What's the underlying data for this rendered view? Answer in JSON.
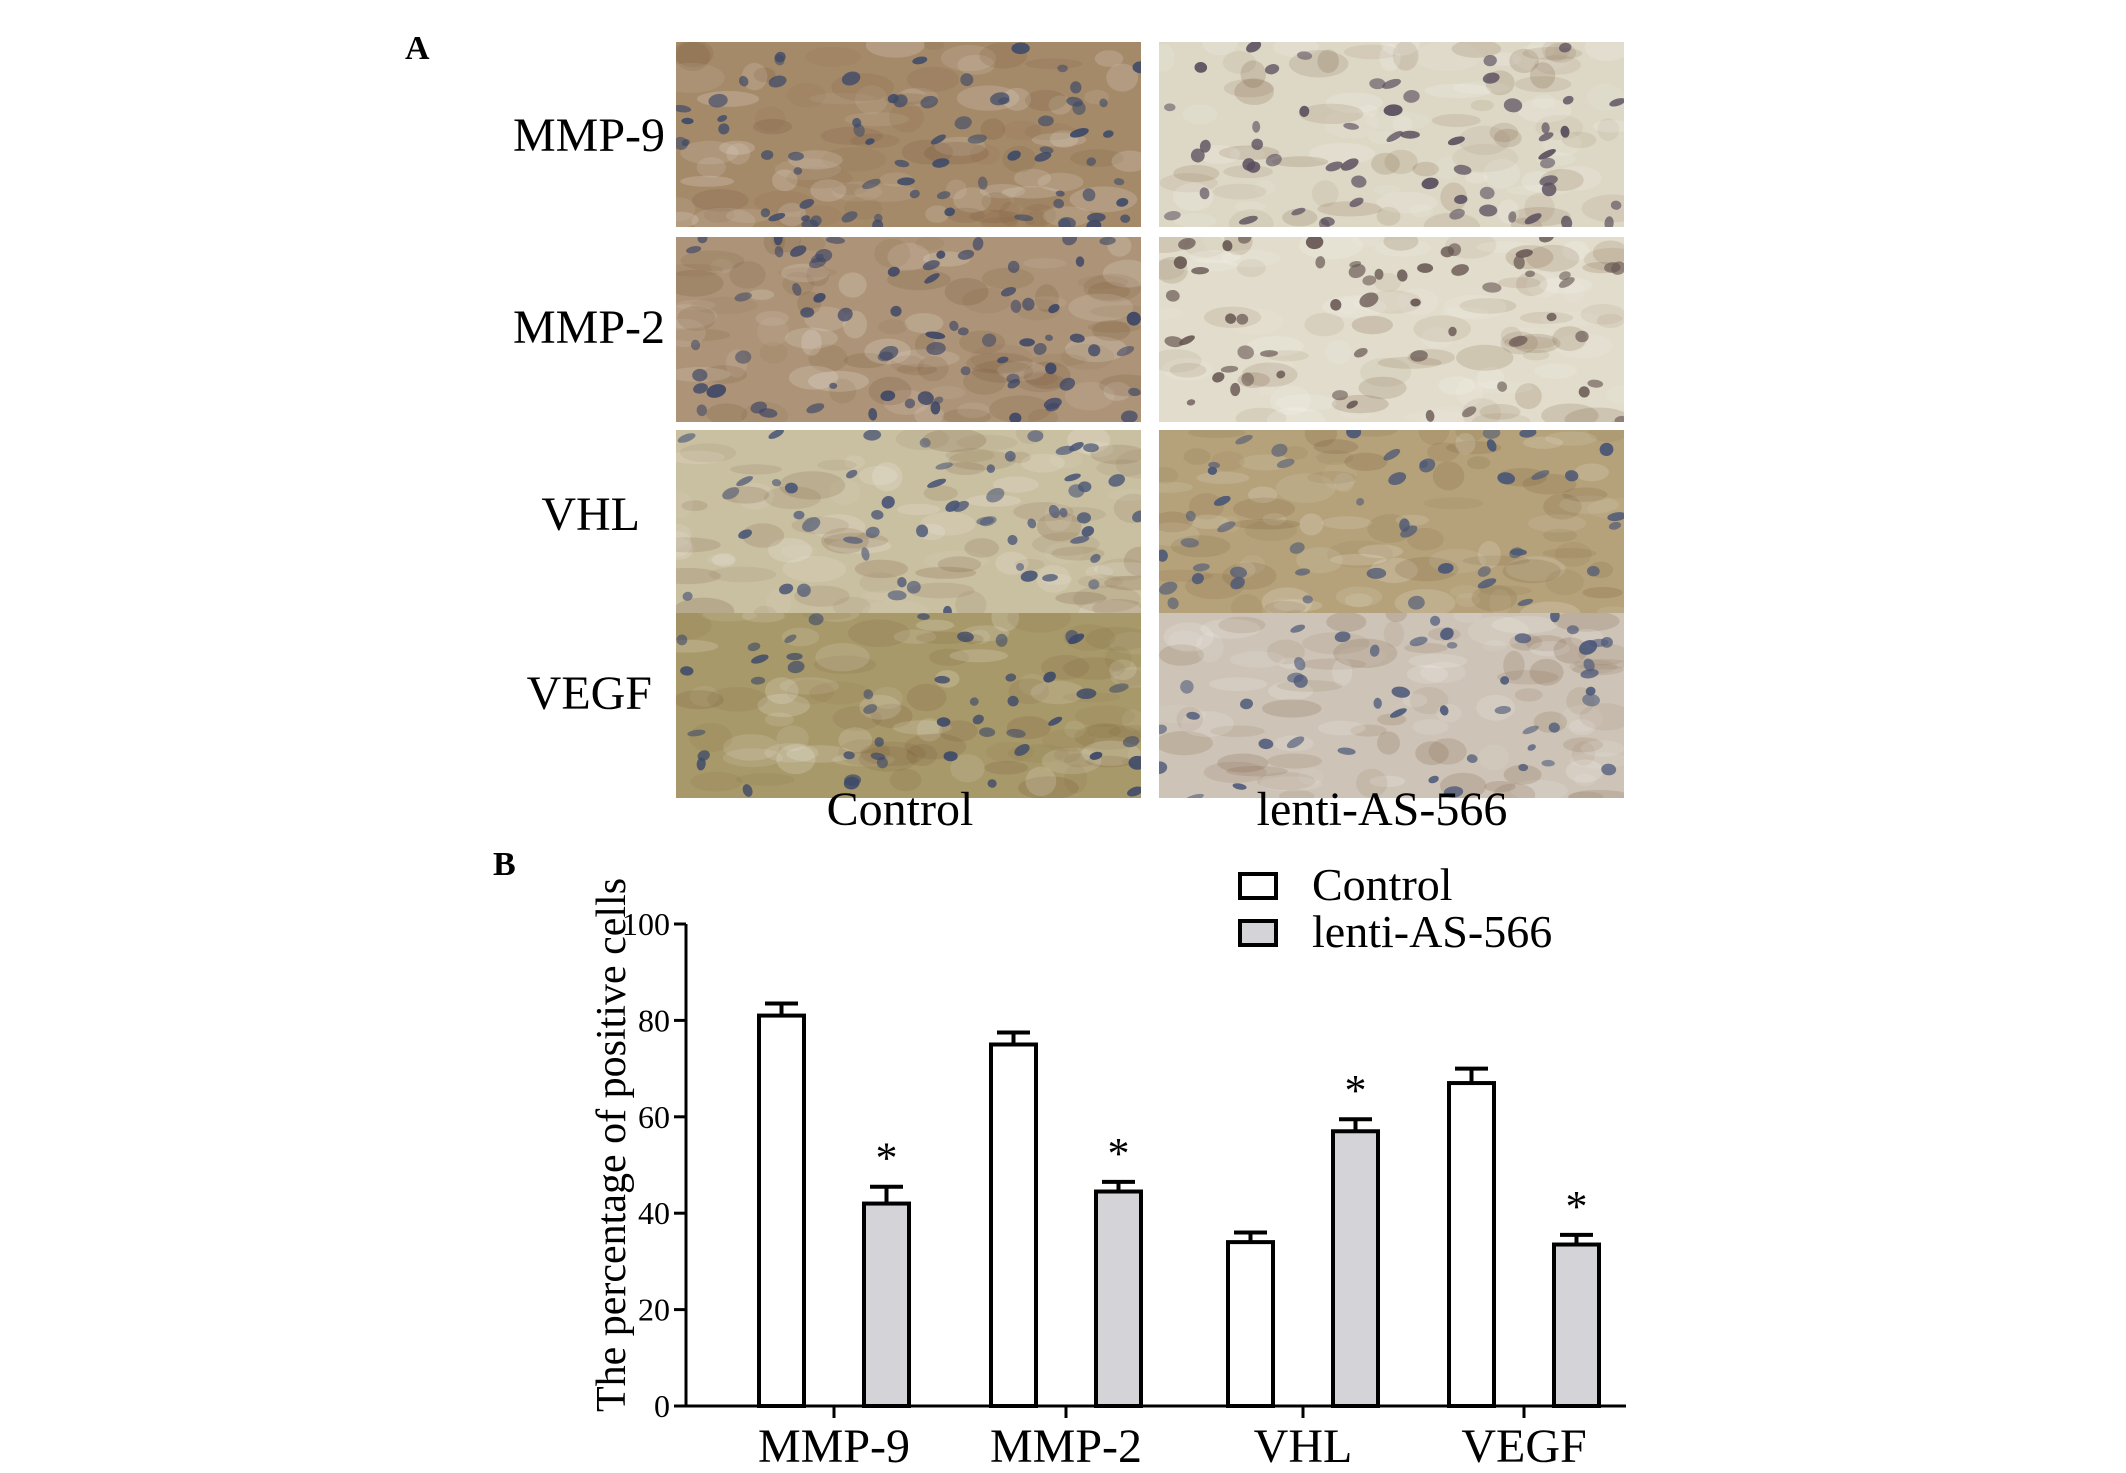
{
  "figure": {
    "panel_a_label": "A",
    "panel_b_label": "B"
  },
  "panel_a": {
    "rows": [
      {
        "label": "MMP-9"
      },
      {
        "label": "MMP-2"
      },
      {
        "label": "VHL"
      },
      {
        "label": "VEGF"
      }
    ],
    "columns": [
      {
        "label": "Control"
      },
      {
        "label": "lenti-AS-566"
      }
    ],
    "tiles": [
      [
        {
          "bg": "#a58a6a",
          "nucleus": "#3e4a68",
          "density": 70,
          "seed": 11
        },
        {
          "bg": "#ddd8c6",
          "nucleus": "#5a4f5e",
          "density": 55,
          "seed": 12
        }
      ],
      [
        {
          "bg": "#ad9478",
          "nucleus": "#3f4766",
          "density": 70,
          "seed": 21
        },
        {
          "bg": "#e1dccb",
          "nucleus": "#6a5a55",
          "density": 55,
          "seed": 22
        }
      ],
      [
        {
          "bg": "#c9bfa1",
          "nucleus": "#4a5676",
          "density": 55,
          "seed": 31
        },
        {
          "bg": "#b5a27a",
          "nucleus": "#4a5676",
          "density": 45,
          "seed": 32
        }
      ],
      [
        {
          "bg": "#a8996a",
          "nucleus": "#3e4a68",
          "density": 45,
          "seed": 41
        },
        {
          "bg": "#cdc3b6",
          "nucleus": "#4e5a7a",
          "density": 45,
          "seed": 42
        }
      ]
    ]
  },
  "chart_data": {
    "type": "bar",
    "categories": [
      "MMP-9",
      "MMP-2",
      "VHL",
      "VEGF"
    ],
    "series": [
      {
        "name": "Control",
        "values": [
          81,
          75,
          34,
          67
        ],
        "errors": [
          2.5,
          2.5,
          2,
          3
        ],
        "color": "#ffffff"
      },
      {
        "name": "lenti-AS-566",
        "values": [
          42,
          44.5,
          57,
          33.5
        ],
        "errors": [
          3.5,
          2,
          2.5,
          2
        ],
        "color": "#d4d4d8"
      }
    ],
    "significance": [
      "",
      "*",
      "",
      "*",
      "",
      "*",
      "",
      "*"
    ],
    "ylabel": "The percentage of positive cells",
    "ylim": [
      0,
      100
    ],
    "yticks": [
      0,
      20,
      40,
      60,
      80,
      100
    ],
    "legend_position": "top-right",
    "grid": false
  }
}
